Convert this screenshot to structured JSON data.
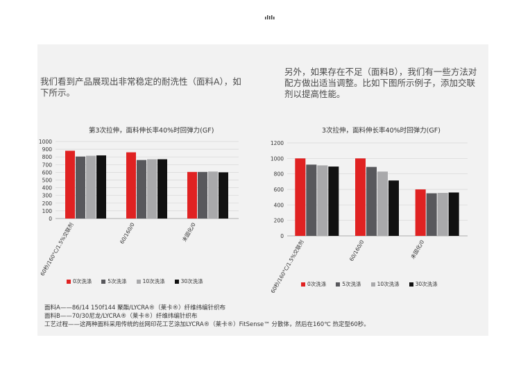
{
  "intro": {
    "left": "我们看到产品展现出非常稳定的耐洗性（面料A），如下所示。",
    "right": "另外，如果存在不足（面料B），我们有一些方法对配方做出适当调整。比如下图所示例子，添加交联剂以提高性能。"
  },
  "charts": {
    "left": {
      "title": "第3次拉伸，面料伸长率40%时回弹力(GF)",
      "legend": [
        "0次洗涤",
        "5次洗涤",
        "10次洗涤",
        "30次洗涤"
      ]
    },
    "right": {
      "title": "3次拉伸，面料伸长率40%时回弹力(GF)",
      "legend": [
        "0次洗涤",
        "5次洗涤",
        "10次洗涤",
        "30次洗涤"
      ]
    }
  },
  "colors": [
    "#e02222",
    "#58585c",
    "#a9a9ab",
    "#111111"
  ],
  "chart_data": [
    {
      "type": "bar",
      "title": "第3次拉伸，面料伸长率40%时回弹力(GF)",
      "categories": [
        "60秒/160°C/1.5%交联剂",
        "60/160/0",
        "未固化/0"
      ],
      "ylim": [
        0,
        1000
      ],
      "yticks": [
        0,
        100,
        200,
        300,
        400,
        500,
        600,
        700,
        800,
        900,
        1000
      ],
      "grid": true,
      "legend_position": "bottom",
      "series": [
        {
          "name": "0次洗涤",
          "values": [
            880,
            860,
            605
          ]
        },
        {
          "name": "5次洗涤",
          "values": [
            805,
            760,
            605
          ]
        },
        {
          "name": "10次洗涤",
          "values": [
            815,
            770,
            610
          ]
        },
        {
          "name": "30次洗涤",
          "values": [
            820,
            770,
            600
          ]
        }
      ]
    },
    {
      "type": "bar",
      "title": "3次拉伸，面料伸长率40%时回弹力(GF)",
      "categories": [
        "60秒/160°C/1.5%交联剂",
        "60/160/0",
        "未固化/0"
      ],
      "ylim": [
        0,
        1200
      ],
      "yticks": [
        0,
        200,
        400,
        600,
        800,
        1000,
        1200
      ],
      "grid": true,
      "legend_position": "bottom",
      "series": [
        {
          "name": "0次洗涤",
          "values": [
            1000,
            1000,
            600
          ]
        },
        {
          "name": "5次洗涤",
          "values": [
            920,
            890,
            550
          ]
        },
        {
          "name": "10次洗涤",
          "values": [
            910,
            830,
            555
          ]
        },
        {
          "name": "30次洗涤",
          "values": [
            895,
            715,
            560
          ]
        }
      ]
    }
  ],
  "notes": [
    "面料A——86/14 150f144 聚酯/LYCRA®（莱卡®）纤维纬编针织布",
    "面料B——70/30尼龙/LYCRA®（莱卡®）纤维纬编针织布",
    "工艺过程——这两种面料采用传统的丝网印花工艺涂加LYCRA®（莱卡®）FitSense™ 分散体，然后在160℃ 热定型60秒。"
  ]
}
